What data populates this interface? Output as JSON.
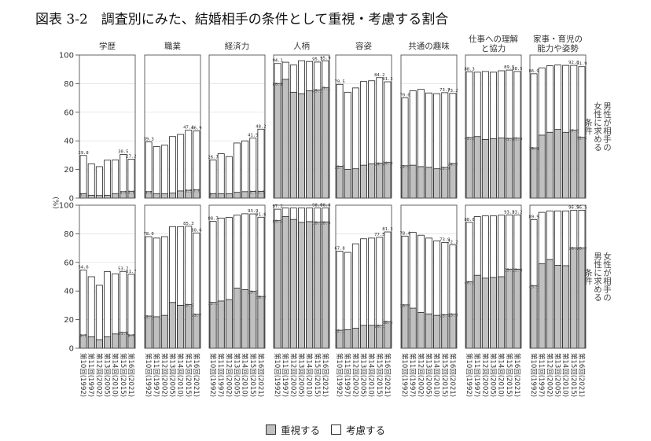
{
  "title": "図表 3-2　調査別にみた、結婚相手の条件として重視・考慮する割合",
  "colors": {
    "juushi": "#c0c0c0",
    "kouryo": "#ffffff"
  },
  "chart_data": {
    "type": "bar",
    "stacked": true,
    "unit_label": "(%)",
    "ylim": [
      0,
      100
    ],
    "yticks": [
      0,
      20,
      40,
      60,
      80,
      100
    ],
    "legend": [
      "重視する",
      "考慮する"
    ],
    "legend_position": "bottom",
    "categories": [
      "第10回(1992)",
      "第11回(1997)",
      "第12回(2002)",
      "第13回(2005)",
      "第14回(2010)",
      "第15回(2015)",
      "第16回(2021)"
    ],
    "columns": [
      "学歴",
      "職業",
      "経済力",
      "人柄",
      "容姿",
      "共通の趣味",
      "仕事への理解\nと協力",
      "家事・育児の\n能力や姿勢"
    ],
    "rows": [
      "男性が相手の\n女性に求める\n条件",
      "女性が相手の\n男性に求める\n条件"
    ],
    "panels": [
      [
        {
          "column": "学歴",
          "juushi": [
            3.1,
            2.0,
            1.8,
            2.0,
            3.0,
            4.5,
            4.8
          ],
          "total": [
            29.8,
            24.0,
            22.0,
            26.5,
            26.7,
            30.5,
            27.2
          ],
          "labels": [
            {
              "i": 0,
              "k": "total"
            },
            {
              "i": 0,
              "k": "juushi"
            },
            {
              "i": 5,
              "k": "total"
            },
            {
              "i": 5,
              "k": "juushi"
            },
            {
              "i": 6,
              "k": "total"
            },
            {
              "i": 6,
              "k": "juushi"
            }
          ]
        },
        {
          "column": "職業",
          "juushi": [
            4.5,
            3.0,
            3.0,
            3.5,
            5.0,
            5.5,
            5.8
          ],
          "total": [
            39.3,
            36.0,
            37.0,
            43.0,
            44.5,
            47.4,
            46.9
          ],
          "labels": [
            {
              "i": 0,
              "k": "total"
            },
            {
              "i": 0,
              "k": "juushi"
            },
            {
              "i": 5,
              "k": "total"
            },
            {
              "i": 5,
              "k": "juushi"
            },
            {
              "i": 6,
              "k": "total"
            },
            {
              "i": 6,
              "k": "juushi"
            }
          ]
        },
        {
          "column": "経済力",
          "juushi": [
            3.1,
            3.0,
            3.0,
            4.0,
            4.5,
            4.7,
            4.7
          ],
          "total": [
            26.7,
            31.0,
            29.0,
            38.5,
            40.0,
            41.9,
            48.2
          ],
          "labels": [
            {
              "i": 0,
              "k": "total"
            },
            {
              "i": 0,
              "k": "juushi"
            },
            {
              "i": 5,
              "k": "total"
            },
            {
              "i": 5,
              "k": "juushi"
            },
            {
              "i": 6,
              "k": "total"
            },
            {
              "i": 6,
              "k": "juushi"
            }
          ]
        },
        {
          "column": "人柄",
          "juushi": [
            80.1,
            83.0,
            74.0,
            73.0,
            75.0,
            75.6,
            77.1
          ],
          "total": [
            94.1,
            95.0,
            93.0,
            96.0,
            95.5,
            95.1,
            95.9
          ],
          "labels": [
            {
              "i": 0,
              "k": "total"
            },
            {
              "i": 0,
              "k": "juushi"
            },
            {
              "i": 5,
              "k": "total"
            },
            {
              "i": 5,
              "k": "juushi"
            },
            {
              "i": 6,
              "k": "total"
            },
            {
              "i": 6,
              "k": "juushi"
            }
          ]
        },
        {
          "column": "容姿",
          "juushi": [
            22.3,
            20.0,
            20.5,
            23.0,
            24.0,
            24.5,
            24.9
          ],
          "total": [
            79.5,
            74.0,
            77.0,
            81.5,
            82.0,
            84.2,
            81.3
          ],
          "labels": [
            {
              "i": 0,
              "k": "total"
            },
            {
              "i": 0,
              "k": "juushi"
            },
            {
              "i": 5,
              "k": "total"
            },
            {
              "i": 5,
              "k": "juushi"
            },
            {
              "i": 6,
              "k": "total"
            },
            {
              "i": 6,
              "k": "juushi"
            }
          ]
        },
        {
          "column": "共通の趣味",
          "juushi": [
            22.6,
            23.0,
            22.0,
            21.5,
            20.5,
            21.4,
            24.2
          ],
          "total": [
            70.0,
            75.0,
            76.0,
            73.5,
            73.0,
            73.7,
            73.2
          ],
          "labels": [
            {
              "i": 0,
              "k": "total"
            },
            {
              "i": 0,
              "k": "juushi"
            },
            {
              "i": 5,
              "k": "total"
            },
            {
              "i": 5,
              "k": "juushi"
            },
            {
              "i": 6,
              "k": "total"
            },
            {
              "i": 6,
              "k": "juushi"
            }
          ]
        },
        {
          "column": "仕事への理解と協力",
          "juushi": [
            42.3,
            43.0,
            41.0,
            41.5,
            42.0,
            41.7,
            41.9
          ],
          "total": [
            88.3,
            88.0,
            88.5,
            88.0,
            89.0,
            89.5,
            88.5
          ],
          "labels": [
            {
              "i": 0,
              "k": "total"
            },
            {
              "i": 0,
              "k": "juushi"
            },
            {
              "i": 5,
              "k": "total"
            },
            {
              "i": 5,
              "k": "juushi"
            },
            {
              "i": 6,
              "k": "total"
            },
            {
              "i": 6,
              "k": "juushi"
            }
          ]
        },
        {
          "column": "家事・育児の能力や姿勢",
          "juushi": [
            35.1,
            44.0,
            46.0,
            48.0,
            46.0,
            47.5,
            42.5
          ],
          "total": [
            86.9,
            91.0,
            92.5,
            93.0,
            92.8,
            92.8,
            91.9
          ],
          "labels": [
            {
              "i": 0,
              "k": "total"
            },
            {
              "i": 0,
              "k": "juushi"
            },
            {
              "i": 5,
              "k": "total"
            },
            {
              "i": 5,
              "k": "juushi"
            },
            {
              "i": 6,
              "k": "total"
            },
            {
              "i": 6,
              "k": "juushi"
            }
          ]
        }
      ],
      [
        {
          "column": "学歴",
          "juushi": [
            9.3,
            8.0,
            6.0,
            8.0,
            10.0,
            11.1,
            9.3
          ],
          "total": [
            54.6,
            50.0,
            44.0,
            53.5,
            52.0,
            53.7,
            51.7
          ],
          "labels": [
            {
              "i": 0,
              "k": "total"
            },
            {
              "i": 0,
              "k": "juushi"
            },
            {
              "i": 5,
              "k": "total"
            },
            {
              "i": 5,
              "k": "juushi"
            },
            {
              "i": 6,
              "k": "total"
            },
            {
              "i": 6,
              "k": "juushi"
            }
          ]
        },
        {
          "column": "職業",
          "juushi": [
            22.5,
            22.0,
            23.0,
            32.0,
            30.0,
            30.5,
            23.7
          ],
          "total": [
            78.0,
            77.0,
            78.0,
            85.0,
            85.0,
            85.3,
            80.6
          ],
          "labels": [
            {
              "i": 0,
              "k": "total"
            },
            {
              "i": 0,
              "k": "juushi"
            },
            {
              "i": 5,
              "k": "total"
            },
            {
              "i": 5,
              "k": "juushi"
            },
            {
              "i": 6,
              "k": "total"
            },
            {
              "i": 6,
              "k": "juushi"
            }
          ]
        },
        {
          "column": "経済力",
          "juushi": [
            32.0,
            33.0,
            34.0,
            42.0,
            41.0,
            39.8,
            36.2
          ],
          "total": [
            88.7,
            91.0,
            91.5,
            93.0,
            94.0,
            93.9,
            91.6
          ],
          "labels": [
            {
              "i": 0,
              "k": "total"
            },
            {
              "i": 0,
              "k": "juushi"
            },
            {
              "i": 5,
              "k": "total"
            },
            {
              "i": 5,
              "k": "juushi"
            },
            {
              "i": 6,
              "k": "total"
            },
            {
              "i": 6,
              "k": "juushi"
            }
          ]
        },
        {
          "column": "人柄",
          "juushi": [
            89.2,
            92.0,
            90.0,
            88.0,
            88.5,
            88.2,
            88.3
          ],
          "total": [
            97.2,
            98.0,
            98.0,
            98.0,
            98.0,
            98.0,
            98.0
          ],
          "labels": [
            {
              "i": 0,
              "k": "total"
            },
            {
              "i": 0,
              "k": "juushi"
            },
            {
              "i": 5,
              "k": "total"
            },
            {
              "i": 5,
              "k": "juushi"
            },
            {
              "i": 6,
              "k": "total"
            },
            {
              "i": 6,
              "k": "juushi"
            }
          ]
        },
        {
          "column": "容姿",
          "juushi": [
            12.6,
            13.0,
            14.0,
            16.0,
            16.0,
            16.0,
            18.6
          ],
          "total": [
            67.8,
            67.0,
            73.0,
            76.5,
            77.0,
            77.5,
            81.3
          ],
          "labels": [
            {
              "i": 0,
              "k": "total"
            },
            {
              "i": 0,
              "k": "juushi"
            },
            {
              "i": 5,
              "k": "total"
            },
            {
              "i": 5,
              "k": "juushi"
            },
            {
              "i": 6,
              "k": "total"
            },
            {
              "i": 6,
              "k": "juushi"
            }
          ]
        },
        {
          "column": "共通の趣味",
          "juushi": [
            30.3,
            28.0,
            25.0,
            24.0,
            23.0,
            23.4,
            23.8
          ],
          "total": [
            78.4,
            81.0,
            79.0,
            77.0,
            75.0,
            73.9,
            72.2
          ],
          "labels": [
            {
              "i": 0,
              "k": "total"
            },
            {
              "i": 0,
              "k": "juushi"
            },
            {
              "i": 5,
              "k": "total"
            },
            {
              "i": 5,
              "k": "juushi"
            },
            {
              "i": 6,
              "k": "total"
            },
            {
              "i": 6,
              "k": "juushi"
            }
          ]
        },
        {
          "column": "仕事への理解と協力",
          "juushi": [
            46.5,
            51.0,
            49.0,
            49.5,
            50.0,
            55.3,
            55.3
          ],
          "total": [
            88.0,
            92.0,
            92.5,
            92.5,
            93.0,
            93.2,
            93.2
          ],
          "labels": [
            {
              "i": 0,
              "k": "total"
            },
            {
              "i": 0,
              "k": "juushi"
            },
            {
              "i": 5,
              "k": "total"
            },
            {
              "i": 5,
              "k": "juushi"
            },
            {
              "i": 6,
              "k": "total"
            },
            {
              "i": 6,
              "k": "juushi"
            }
          ]
        },
        {
          "column": "家事・育児の能力や姿勢",
          "juushi": [
            43.6,
            59.0,
            62.0,
            58.0,
            57.7,
            70.2,
            70.2
          ],
          "total": [
            89.9,
            95.0,
            96.0,
            96.0,
            96.0,
            96.5,
            96.5
          ],
          "labels": [
            {
              "i": 0,
              "k": "total"
            },
            {
              "i": 0,
              "k": "juushi"
            },
            {
              "i": 5,
              "k": "total"
            },
            {
              "i": 5,
              "k": "juushi"
            },
            {
              "i": 6,
              "k": "total"
            },
            {
              "i": 6,
              "k": "juushi"
            }
          ]
        }
      ]
    ]
  }
}
